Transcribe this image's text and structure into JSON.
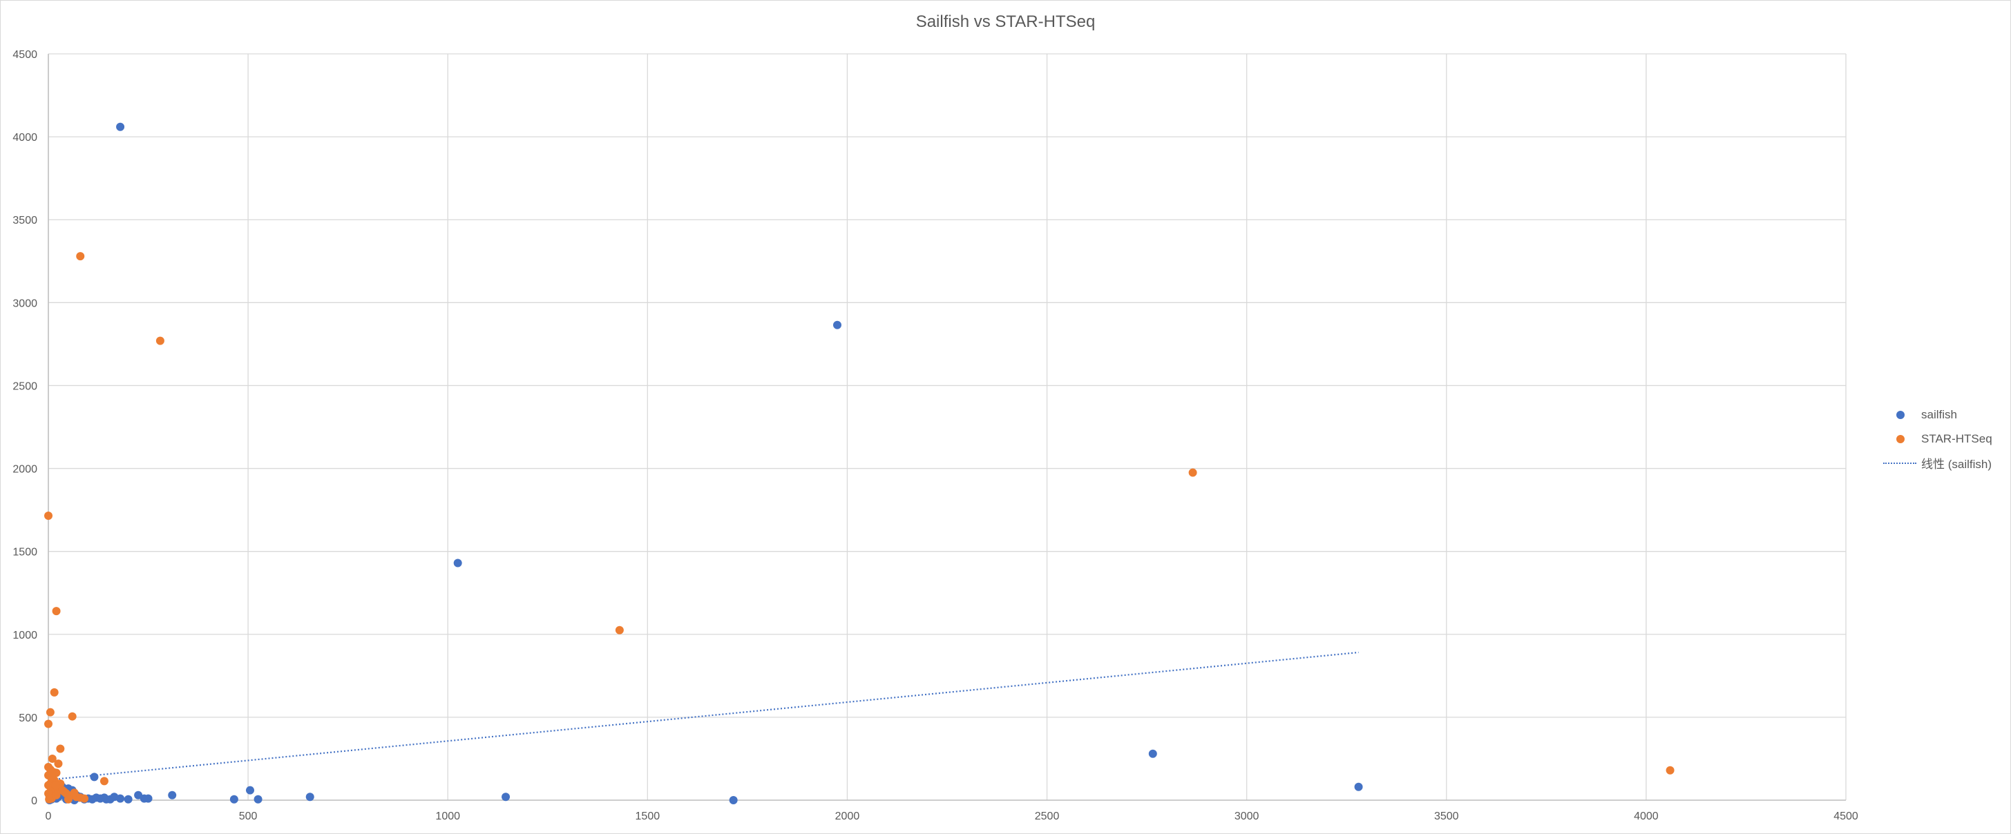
{
  "chart_data": {
    "type": "scatter",
    "title": "Sailfish vs STAR-HTSeq",
    "xlim": [
      0,
      4500
    ],
    "ylim": [
      0,
      4500
    ],
    "x_ticks": [
      "0",
      "500",
      "1000",
      "1500",
      "2000",
      "2500",
      "3000",
      "3500",
      "4000",
      "4500"
    ],
    "y_ticks": [
      "0",
      "500",
      "1000",
      "1500",
      "2000",
      "2500",
      "3000",
      "3500",
      "4000",
      "4500"
    ],
    "grid": true,
    "legend_position": "right",
    "series": [
      {
        "name": "sailfish",
        "color": "#4472c4",
        "points": [
          [
            180,
            4060
          ],
          [
            1975,
            2865
          ],
          [
            1025,
            1430
          ],
          [
            2765,
            280
          ],
          [
            3280,
            80
          ],
          [
            115,
            140
          ],
          [
            505,
            60
          ],
          [
            310,
            30
          ],
          [
            225,
            30
          ],
          [
            655,
            20
          ],
          [
            1145,
            20
          ],
          [
            465,
            5
          ],
          [
            525,
            5
          ],
          [
            1715,
            0
          ],
          [
            140,
            15
          ],
          [
            165,
            20
          ],
          [
            180,
            10
          ],
          [
            155,
            5
          ],
          [
            130,
            10
          ],
          [
            120,
            15
          ],
          [
            100,
            10
          ],
          [
            90,
            5
          ],
          [
            80,
            20
          ],
          [
            70,
            30
          ],
          [
            60,
            60
          ],
          [
            50,
            70
          ],
          [
            40,
            50
          ],
          [
            35,
            80
          ],
          [
            30,
            30
          ],
          [
            25,
            20
          ],
          [
            20,
            10
          ],
          [
            15,
            40
          ],
          [
            10,
            25
          ],
          [
            8,
            5
          ],
          [
            5,
            15
          ],
          [
            3,
            0
          ],
          [
            45,
            5
          ],
          [
            55,
            10
          ],
          [
            65,
            0
          ],
          [
            75,
            15
          ],
          [
            240,
            10
          ],
          [
            250,
            10
          ],
          [
            145,
            5
          ],
          [
            110,
            5
          ],
          [
            200,
            5
          ]
        ]
      },
      {
        "name": "STAR-HTSeq",
        "color": "#ed7d31",
        "points": [
          [
            80,
            3280
          ],
          [
            280,
            2770
          ],
          [
            2865,
            1975
          ],
          [
            1430,
            1025
          ],
          [
            4060,
            180
          ],
          [
            0,
            1715
          ],
          [
            20,
            1140
          ],
          [
            15,
            650
          ],
          [
            60,
            505
          ],
          [
            5,
            530
          ],
          [
            0,
            460
          ],
          [
            30,
            310
          ],
          [
            25,
            220
          ],
          [
            10,
            250
          ],
          [
            140,
            115
          ],
          [
            20,
            165
          ],
          [
            5,
            185
          ],
          [
            0,
            150
          ],
          [
            10,
            130
          ],
          [
            15,
            120
          ],
          [
            5,
            100
          ],
          [
            0,
            90
          ],
          [
            25,
            80
          ],
          [
            35,
            60
          ],
          [
            40,
            50
          ],
          [
            45,
            40
          ],
          [
            60,
            30
          ],
          [
            70,
            20
          ],
          [
            80,
            15
          ],
          [
            90,
            10
          ],
          [
            10,
            70
          ],
          [
            15,
            60
          ],
          [
            5,
            50
          ],
          [
            0,
            40
          ],
          [
            20,
            30
          ],
          [
            3,
            20
          ],
          [
            8,
            10
          ],
          [
            50,
            5
          ],
          [
            65,
            45
          ],
          [
            30,
            100
          ],
          [
            0,
            200
          ],
          [
            12,
            170
          ],
          [
            18,
            90
          ],
          [
            6,
            140
          ],
          [
            2,
            5
          ]
        ]
      }
    ],
    "trendline": {
      "name": "线性 (sailfish)",
      "series": "sailfish",
      "kind": "linear",
      "color": "#4472c4",
      "x_range": [
        0,
        3280
      ]
    }
  }
}
